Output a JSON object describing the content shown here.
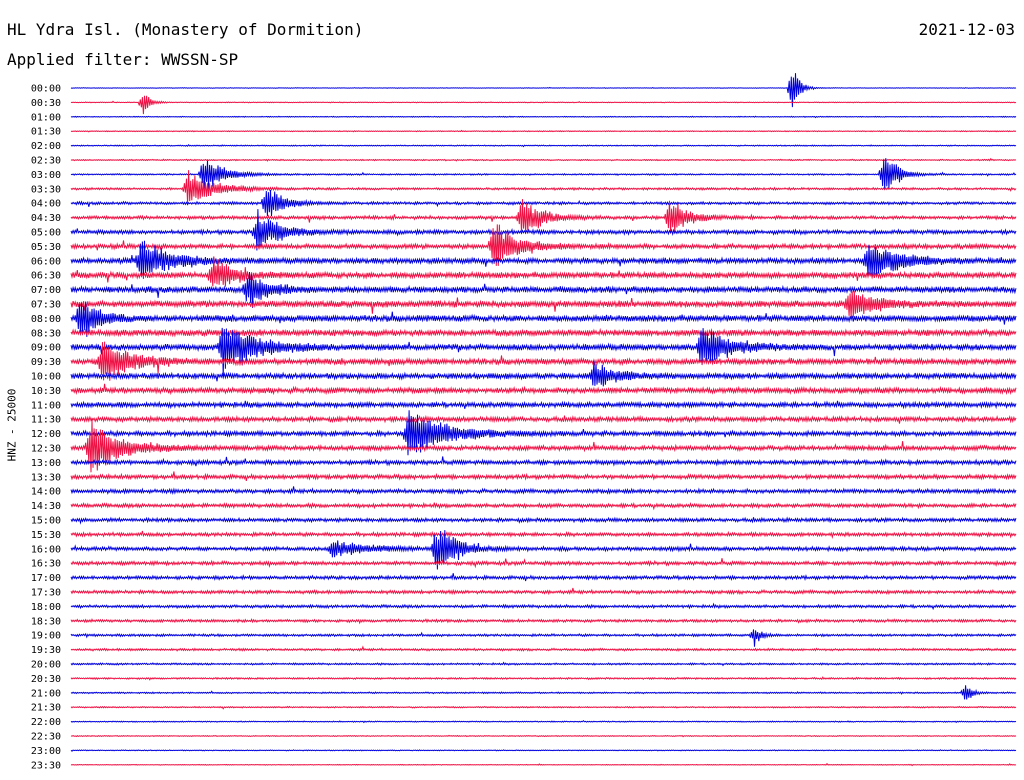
{
  "header": {
    "station": "HL Ydra Isl. (Monastery of Dormition)",
    "date": "2021-12-03",
    "filter": "Applied filter: WWSSN-SP"
  },
  "chart_data": {
    "type": "line",
    "ylabel": "HNZ - 25000",
    "colors": [
      "#0000dd",
      "#ee1144"
    ],
    "x_unit": "minutes after line start",
    "xlim": [
      0,
      30
    ],
    "row_labels": [
      "00:00",
      "00:30",
      "01:00",
      "01:30",
      "02:00",
      "02:30",
      "03:00",
      "03:30",
      "04:00",
      "04:30",
      "05:00",
      "05:30",
      "06:00",
      "06:30",
      "07:00",
      "07:30",
      "08:00",
      "08:30",
      "09:00",
      "09:30",
      "10:00",
      "10:30",
      "11:00",
      "11:30",
      "12:00",
      "12:30",
      "13:00",
      "13:30",
      "14:00",
      "14:30",
      "15:00",
      "15:30",
      "16:00",
      "16:30",
      "17:00",
      "17:30",
      "18:00",
      "18:30",
      "19:00",
      "19:30",
      "20:00",
      "20:30",
      "21:00",
      "21:30",
      "22:00",
      "22:30",
      "23:00",
      "23:30"
    ],
    "noise": [
      0.3,
      0.4,
      0.5,
      0.5,
      0.6,
      0.7,
      0.8,
      1.2,
      1.5,
      1.8,
      2.2,
      2.5,
      3,
      3.2,
      3.4,
      3.5,
      3.5,
      3.4,
      3.3,
      3.2,
      3.1,
      3,
      2.8,
      2.6,
      2.6,
      2.5,
      2.4,
      2.3,
      2.2,
      2.1,
      2.0,
      2.0,
      2.1,
      2.0,
      1.9,
      1.8,
      1.6,
      1.5,
      1.3,
      1.2,
      1.0,
      0.9,
      0.8,
      0.7,
      0.6,
      0.5,
      0.5,
      0.4
    ],
    "events": [
      {
        "row": 0,
        "t": 22.9,
        "amp": 30,
        "dur": 0.2
      },
      {
        "row": 1,
        "t": 2.3,
        "amp": 16,
        "dur": 0.2
      },
      {
        "row": 6,
        "t": 4.2,
        "amp": 22,
        "dur": 0.6
      },
      {
        "row": 6,
        "t": 25.8,
        "amp": 28,
        "dur": 0.4
      },
      {
        "row": 7,
        "t": 3.7,
        "amp": 20,
        "dur": 0.8
      },
      {
        "row": 8,
        "t": 6.2,
        "amp": 22,
        "dur": 0.5
      },
      {
        "row": 9,
        "t": 14.3,
        "amp": 24,
        "dur": 0.6
      },
      {
        "row": 9,
        "t": 19.0,
        "amp": 24,
        "dur": 0.5
      },
      {
        "row": 10,
        "t": 5.9,
        "amp": 24,
        "dur": 0.7
      },
      {
        "row": 11,
        "t": 13.4,
        "amp": 30,
        "dur": 0.7
      },
      {
        "row": 12,
        "t": 2.2,
        "amp": 26,
        "dur": 0.9
      },
      {
        "row": 12,
        "t": 25.3,
        "amp": 24,
        "dur": 0.9
      },
      {
        "row": 13,
        "t": 4.5,
        "amp": 22,
        "dur": 0.6
      },
      {
        "row": 14,
        "t": 5.6,
        "amp": 22,
        "dur": 0.6
      },
      {
        "row": 15,
        "t": 24.7,
        "amp": 18,
        "dur": 0.8
      },
      {
        "row": 16,
        "t": 0.3,
        "amp": 28,
        "dur": 0.5
      },
      {
        "row": 18,
        "t": 4.8,
        "amp": 30,
        "dur": 1.0
      },
      {
        "row": 18,
        "t": 20.0,
        "amp": 26,
        "dur": 0.8
      },
      {
        "row": 19,
        "t": 1.0,
        "amp": 24,
        "dur": 0.9
      },
      {
        "row": 20,
        "t": 16.6,
        "amp": 18,
        "dur": 0.6
      },
      {
        "row": 24,
        "t": 10.7,
        "amp": 30,
        "dur": 1.1
      },
      {
        "row": 25,
        "t": 0.6,
        "amp": 30,
        "dur": 1.0
      },
      {
        "row": 32,
        "t": 11.6,
        "amp": 30,
        "dur": 0.6
      },
      {
        "row": 32,
        "t": 8.3,
        "amp": 10,
        "dur": 1.0
      },
      {
        "row": 38,
        "t": 21.7,
        "amp": 12,
        "dur": 0.2
      },
      {
        "row": 42,
        "t": 28.4,
        "amp": 12,
        "dur": 0.2
      }
    ]
  }
}
